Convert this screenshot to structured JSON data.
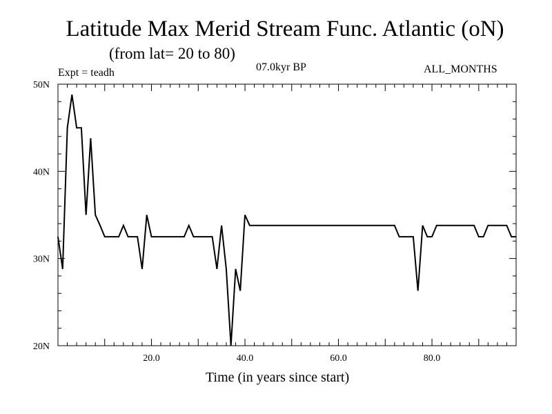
{
  "chart_data": {
    "type": "line",
    "title": "Latitude Max Merid Stream Func. Atlantic (oN)",
    "subtitle": "(from lat= 20 to 80)",
    "experiment_label": "Expt = teadh",
    "period_label": "07.0kyr BP",
    "months_label": "ALL_MONTHS",
    "xlabel": "Time (in years since start)",
    "ylabel": "",
    "xlim": [
      0,
      98
    ],
    "ylim": [
      20,
      50
    ],
    "x_ticks": [
      {
        "value": 20,
        "label": "20.0"
      },
      {
        "value": 40,
        "label": "40.0"
      },
      {
        "value": 60,
        "label": "60.0"
      },
      {
        "value": 80,
        "label": "80.0"
      }
    ],
    "y_ticks": [
      {
        "value": 20,
        "label": "20N"
      },
      {
        "value": 30,
        "label": "30N"
      },
      {
        "value": 40,
        "label": "40N"
      },
      {
        "value": 50,
        "label": "50N"
      }
    ],
    "line_color": "#000000",
    "grid": false,
    "series": [
      {
        "x": [
          0,
          1,
          2,
          3,
          4,
          5,
          6,
          7,
          8,
          9,
          10,
          11,
          12,
          13,
          14,
          15,
          16,
          17,
          18,
          19,
          20,
          21,
          22,
          23,
          24,
          25,
          26,
          27,
          28,
          29,
          30,
          31,
          32,
          33,
          34,
          35,
          36,
          37,
          38,
          39,
          40,
          41,
          42,
          43,
          44,
          45,
          46,
          47,
          48,
          49,
          50,
          51,
          52,
          53,
          54,
          55,
          56,
          57,
          58,
          59,
          60,
          61,
          62,
          63,
          64,
          65,
          66,
          67,
          68,
          69,
          70,
          71,
          72,
          73,
          74,
          75,
          76,
          77,
          78,
          79,
          80,
          81,
          82,
          83,
          84,
          85,
          86,
          87,
          88,
          89,
          90,
          91,
          92,
          93,
          94,
          95,
          96,
          97,
          98
        ],
        "values": [
          32.5,
          28.8,
          45.0,
          48.8,
          45.0,
          45.0,
          35.0,
          43.8,
          35.0,
          33.8,
          32.5,
          32.5,
          32.5,
          32.5,
          33.8,
          32.5,
          32.5,
          32.5,
          28.8,
          35.0,
          32.5,
          32.5,
          32.5,
          32.5,
          32.5,
          32.5,
          32.5,
          32.5,
          33.8,
          32.5,
          32.5,
          32.5,
          32.5,
          32.5,
          28.8,
          33.8,
          28.8,
          20.0,
          28.8,
          26.3,
          35.0,
          33.8,
          33.8,
          33.8,
          33.8,
          33.8,
          33.8,
          33.8,
          33.8,
          33.8,
          33.8,
          33.8,
          33.8,
          33.8,
          33.8,
          33.8,
          33.8,
          33.8,
          33.8,
          33.8,
          33.8,
          33.8,
          33.8,
          33.8,
          33.8,
          33.8,
          33.8,
          33.8,
          33.8,
          33.8,
          33.8,
          33.8,
          33.8,
          32.5,
          32.5,
          32.5,
          32.5,
          26.3,
          33.8,
          32.5,
          32.5,
          33.8,
          33.8,
          33.8,
          33.8,
          33.8,
          33.8,
          33.8,
          33.8,
          33.8,
          32.5,
          32.5,
          33.8,
          33.8,
          33.8,
          33.8,
          33.8,
          32.5,
          32.5
        ]
      }
    ]
  }
}
